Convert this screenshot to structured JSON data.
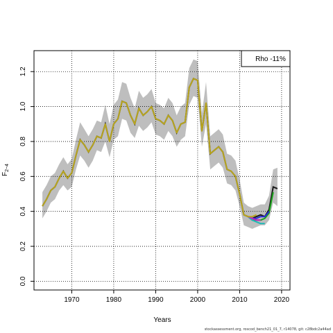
{
  "footer_text": "stockassessment.org, roscod_bench21_01_7, r14078, git: c28bdc2a44ad",
  "chart_data": {
    "type": "line",
    "xlabel": "Years",
    "ylabel": "F",
    "ylabel_subscript": "2−4",
    "xlim": [
      1961,
      2022
    ],
    "ylim": [
      -0.05,
      1.32
    ],
    "x_ticks": [
      1970,
      1980,
      1990,
      2000,
      2010,
      2020
    ],
    "y_ticks": [
      0.0,
      0.2,
      0.4,
      0.6,
      0.8,
      1.0,
      1.2
    ],
    "x_tick_labels": [
      "1970",
      "1980",
      "1990",
      "2000",
      "2010",
      "2020"
    ],
    "y_tick_labels": [
      "0.0",
      "0.2",
      "0.4",
      "0.6",
      "0.8",
      "1.0",
      "1.2"
    ],
    "grid": true,
    "legend_text": "Rho -11%",
    "legend_position": "top-right",
    "band_color": "#bebebe",
    "main": {
      "x": [
        1963,
        1964,
        1965,
        1966,
        1967,
        1968,
        1969,
        1970,
        1971,
        1972,
        1973,
        1974,
        1975,
        1976,
        1977,
        1978,
        1979,
        1980,
        1981,
        1982,
        1983,
        1984,
        1985,
        1986,
        1987,
        1988,
        1989,
        1990,
        1991,
        1992,
        1993,
        1994,
        1995,
        1996,
        1997,
        1998,
        1999,
        2000,
        2001,
        2002,
        2003,
        2004,
        2005,
        2006,
        2007,
        2008,
        2009,
        2010,
        2011,
        2012,
        2013,
        2014,
        2015,
        2016,
        2017,
        2018,
        2019
      ],
      "y": [
        0.43,
        0.47,
        0.52,
        0.54,
        0.59,
        0.63,
        0.59,
        0.62,
        0.72,
        0.81,
        0.78,
        0.74,
        0.78,
        0.83,
        0.82,
        0.9,
        0.8,
        0.9,
        0.93,
        1.03,
        1.02,
        0.95,
        0.9,
        0.99,
        0.95,
        0.97,
        1.0,
        0.93,
        0.92,
        0.9,
        0.95,
        0.92,
        0.85,
        0.9,
        0.91,
        1.11,
        1.16,
        1.15,
        0.86,
        1.02,
        0.73,
        0.75,
        0.77,
        0.74,
        0.64,
        0.63,
        0.6,
        0.5,
        0.38,
        0.37,
        0.36,
        0.37,
        0.38,
        0.37,
        0.41,
        0.54,
        0.53
      ],
      "lower": [
        0.36,
        0.4,
        0.45,
        0.47,
        0.52,
        0.55,
        0.52,
        0.54,
        0.64,
        0.72,
        0.69,
        0.65,
        0.69,
        0.75,
        0.74,
        0.8,
        0.71,
        0.81,
        0.83,
        0.93,
        0.92,
        0.85,
        0.82,
        0.89,
        0.86,
        0.88,
        0.91,
        0.84,
        0.83,
        0.81,
        0.86,
        0.83,
        0.77,
        0.81,
        0.83,
        1.01,
        1.06,
        1.05,
        0.77,
        0.9,
        0.64,
        0.66,
        0.68,
        0.65,
        0.56,
        0.55,
        0.52,
        0.43,
        0.32,
        0.31,
        0.3,
        0.31,
        0.32,
        0.32,
        0.35,
        0.45,
        0.43
      ],
      "upper": [
        0.51,
        0.55,
        0.6,
        0.62,
        0.67,
        0.71,
        0.67,
        0.7,
        0.81,
        0.91,
        0.87,
        0.83,
        0.87,
        0.92,
        0.91,
        1.01,
        0.9,
        1.01,
        1.04,
        1.14,
        1.13,
        1.05,
        0.99,
        1.09,
        1.05,
        1.07,
        1.1,
        1.02,
        1.01,
        0.99,
        1.05,
        1.02,
        0.95,
        1.0,
        1.02,
        1.22,
        1.27,
        1.26,
        0.96,
        1.14,
        0.83,
        0.85,
        0.87,
        0.84,
        0.73,
        0.72,
        0.69,
        0.58,
        0.45,
        0.43,
        0.42,
        0.43,
        0.44,
        0.44,
        0.49,
        0.64,
        0.65
      ],
      "color": "#1a1a1a"
    },
    "peels": [
      {
        "color": "#1aa31a",
        "x": [
          2012,
          2013,
          2014,
          2015,
          2016,
          2017,
          2018
        ],
        "y": [
          0.37,
          0.35,
          0.35,
          0.35,
          0.36,
          0.39,
          0.51
        ]
      },
      {
        "color": "#2a2ad6",
        "x": [
          2012,
          2013,
          2014,
          2015,
          2016,
          2017
        ],
        "y": [
          0.37,
          0.36,
          0.36,
          0.37,
          0.37,
          0.4
        ]
      },
      {
        "color": "#1fb8b8",
        "x": [
          2012,
          2013,
          2014,
          2015,
          2016
        ],
        "y": [
          0.37,
          0.35,
          0.34,
          0.33,
          0.33
        ]
      },
      {
        "color": "#c020c0",
        "x": [
          2012,
          2013,
          2014,
          2015
        ],
        "y": [
          0.37,
          0.36,
          0.35,
          0.35
        ]
      },
      {
        "color": "#b8a51e",
        "x": [
          1963,
          1964,
          1965,
          1966,
          1967,
          1968,
          1969,
          1970,
          1971,
          1972,
          1973,
          1974,
          1975,
          1976,
          1977,
          1978,
          1979,
          1980,
          1981,
          1982,
          1983,
          1984,
          1985,
          1986,
          1987,
          1988,
          1989,
          1990,
          1991,
          1992,
          1993,
          1994,
          1995,
          1996,
          1997,
          1998,
          1999,
          2000,
          2001,
          2002,
          2003,
          2004,
          2005,
          2006,
          2007,
          2008,
          2009,
          2010,
          2011,
          2012,
          2013,
          2014
        ],
        "y": [
          0.43,
          0.47,
          0.52,
          0.54,
          0.59,
          0.63,
          0.59,
          0.62,
          0.72,
          0.81,
          0.78,
          0.74,
          0.78,
          0.83,
          0.82,
          0.9,
          0.8,
          0.9,
          0.93,
          1.03,
          1.02,
          0.95,
          0.9,
          0.99,
          0.95,
          0.97,
          1.0,
          0.93,
          0.92,
          0.9,
          0.95,
          0.92,
          0.85,
          0.9,
          0.91,
          1.11,
          1.16,
          1.15,
          0.86,
          1.02,
          0.73,
          0.75,
          0.77,
          0.74,
          0.64,
          0.63,
          0.6,
          0.5,
          0.38,
          0.37,
          0.37,
          0.38
        ]
      }
    ]
  }
}
